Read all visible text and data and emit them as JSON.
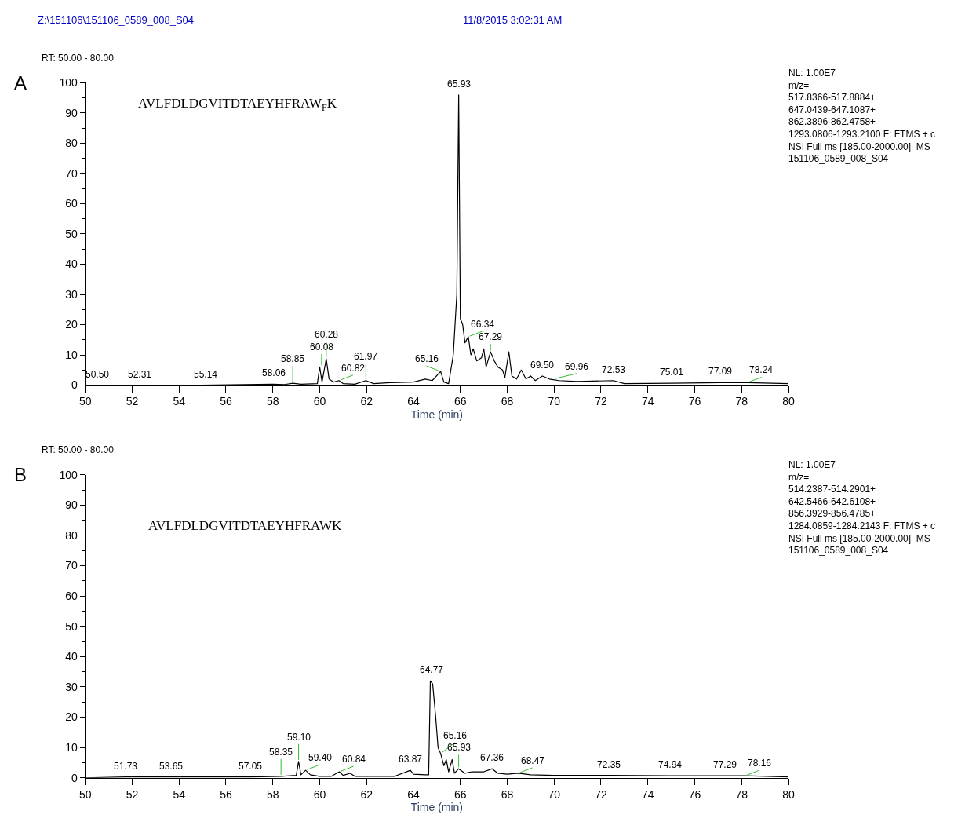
{
  "chart_data": [
    {
      "type": "line",
      "xlabel": "Time (min)",
      "xlim": [
        50,
        80
      ],
      "ylim": [
        0,
        100
      ],
      "xticks": [
        50,
        52,
        54,
        56,
        58,
        60,
        62,
        64,
        66,
        68,
        70,
        72,
        74,
        76,
        78,
        80
      ],
      "yticks": [
        0,
        10,
        20,
        30,
        40,
        50,
        60,
        70,
        80,
        90,
        100
      ],
      "legend": false,
      "x": [
        50,
        52,
        55,
        58,
        58.5,
        58.85,
        59.2,
        59.9,
        60.0,
        60.1,
        60.28,
        60.4,
        60.6,
        60.82,
        61.0,
        61.5,
        61.97,
        62.3,
        63,
        64,
        64.5,
        64.8,
        65.16,
        65.3,
        65.5,
        65.7,
        65.85,
        65.93,
        66.0,
        66.1,
        66.2,
        66.34,
        66.45,
        66.55,
        66.7,
        66.9,
        67.0,
        67.1,
        67.29,
        67.45,
        67.6,
        67.8,
        67.9,
        68.07,
        68.2,
        68.4,
        68.6,
        68.8,
        69.0,
        69.2,
        69.5,
        69.8,
        70.2,
        71,
        72.53,
        73,
        75,
        77.09,
        78.24,
        80
      ],
      "series": [
        {
          "color": "#000000",
          "values": [
            0,
            0,
            0,
            0.3,
            0.2,
            0.6,
            0.3,
            0.5,
            6,
            1,
            8.7,
            2,
            1,
            1.5,
            0.5,
            0.3,
            1.5,
            0.5,
            0.8,
            1,
            2,
            1.5,
            4.5,
            1,
            0.5,
            10,
            30,
            96,
            22,
            20,
            14,
            16,
            10,
            12,
            8,
            9,
            12,
            6,
            11,
            8,
            6,
            5,
            2.5,
            11,
            3,
            2,
            5,
            2,
            3,
            1.5,
            3,
            2,
            1.5,
            1.2,
            1.5,
            0.5,
            0.6,
            0.8,
            0.8,
            0.5
          ]
        }
      ],
      "annotations": [
        "Z:\\151106\\151106_0589_008_S04",
        "11/8/2015 3:02:31 AM",
        "RT: 50.00 - 80.00",
        "A",
        "AVLFDLDGVITDTAEYHFRAW$_{F}$K",
        "NL: 1.00E7\nm/z=\n517.8366-517.8884+\n647.0439-647.1087+\n862.3896-862.4758+\n1293.0806-1293.2100 F: FTMS + c\nNSI Full ms [185.00-2000.00]  MS\n151106_0589_008_S04",
        {
          "text": "50.50",
          "x": 50.5,
          "y": 0
        },
        {
          "text": "52.31",
          "x": 52.31,
          "y": 0
        },
        {
          "text": "55.14",
          "x": 55.14,
          "y": 0
        },
        {
          "text": "58.06",
          "x": 58.06,
          "y": 0.3
        },
        {
          "text": "58.85",
          "x": 58.85,
          "y": 0.6
        },
        {
          "text": "60.08",
          "x": 60.08,
          "y": 6
        },
        {
          "text": "60.28",
          "x": 60.28,
          "y": 8.7
        },
        {
          "text": "60.82",
          "x": 60.82,
          "y": 1.5
        },
        {
          "text": "61.97",
          "x": 61.97,
          "y": 1.5
        },
        {
          "text": "65.16",
          "x": 65.16,
          "y": 4.5
        },
        {
          "text": "65.93",
          "x": 65.93,
          "y": 96
        },
        {
          "text": "66.34",
          "x": 66.34,
          "y": 16
        },
        {
          "text": "67.29",
          "x": 67.29,
          "y": 11
        },
        {
          "text": "69.50",
          "x": 69.5,
          "y": 3
        },
        {
          "text": "69.96",
          "x": 69.96,
          "y": 2
        },
        {
          "text": "72.53",
          "x": 72.53,
          "y": 1.5
        },
        {
          "text": "75.01",
          "x": 75.01,
          "y": 0.6
        },
        {
          "text": "77.09",
          "x": 77.09,
          "y": 0.8
        },
        {
          "text": "78.24",
          "x": 78.24,
          "y": 0.8
        }
      ]
    },
    {
      "type": "line",
      "xlabel": "Time (min)",
      "xlim": [
        50,
        80
      ],
      "ylim": [
        0,
        100
      ],
      "xticks": [
        50,
        52,
        54,
        56,
        58,
        60,
        62,
        64,
        66,
        68,
        70,
        72,
        74,
        76,
        78,
        80
      ],
      "yticks": [
        0,
        10,
        20,
        30,
        40,
        50,
        60,
        70,
        80,
        90,
        100
      ],
      "legend": false,
      "x": [
        50,
        51.73,
        53.65,
        57.05,
        58.35,
        59.0,
        59.1,
        59.2,
        59.4,
        59.6,
        60,
        60.5,
        60.84,
        61,
        61.3,
        61.5,
        62.5,
        63.2,
        63.87,
        64.0,
        64.5,
        64.65,
        64.72,
        64.82,
        64.95,
        65.05,
        65.16,
        65.3,
        65.4,
        65.5,
        65.65,
        65.75,
        65.93,
        66.2,
        66.5,
        67,
        67.36,
        67.6,
        68,
        68.47,
        69,
        70,
        72.35,
        74.94,
        77.29,
        78.16,
        80
      ],
      "series": [
        {
          "color": "#000000",
          "values": [
            0,
            0.3,
            0.3,
            0.3,
            0.5,
            0.8,
            5.4,
            1,
            2.5,
            1,
            0.5,
            0.5,
            2,
            0.8,
            1.5,
            0.5,
            0.5,
            0.5,
            2.5,
            1.2,
            1,
            1,
            32,
            31,
            20,
            10,
            8,
            4,
            6,
            2,
            6,
            1.5,
            3,
            1.5,
            2,
            2,
            3,
            1.5,
            1.2,
            1.5,
            1,
            0.8,
            0.8,
            0.7,
            0.7,
            0.7,
            0.3
          ]
        }
      ],
      "annotations": [
        "RT: 50.00 - 80.00",
        "B",
        "AVLFDLDGVITDTAEYHFRAWK",
        "NL: 1.00E7\nm/z=\n514.2387-514.2901+\n642.5466-642.6108+\n856.3929-856.4785+\n1284.0859-1284.2143 F: FTMS + c\nNSI Full ms [185.00-2000.00]  MS\n151106_0589_008_S04",
        {
          "text": "51.73",
          "x": 51.73,
          "y": 0.3
        },
        {
          "text": "53.65",
          "x": 53.65,
          "y": 0.3
        },
        {
          "text": "57.05",
          "x": 57.05,
          "y": 0.3
        },
        {
          "text": "58.35",
          "x": 58.35,
          "y": 0.5
        },
        {
          "text": "59.10",
          "x": 59.1,
          "y": 5.4
        },
        {
          "text": "59.40",
          "x": 59.4,
          "y": 2.5
        },
        {
          "text": "60.84",
          "x": 60.84,
          "y": 2
        },
        {
          "text": "63.87",
          "x": 63.87,
          "y": 2.5
        },
        {
          "text": "64.77",
          "x": 64.77,
          "y": 32
        },
        {
          "text": "65.16",
          "x": 65.16,
          "y": 8
        },
        {
          "text": "65.93",
          "x": 65.93,
          "y": 3
        },
        {
          "text": "67.36",
          "x": 67.36,
          "y": 3
        },
        {
          "text": "68.47",
          "x": 68.47,
          "y": 1.5
        },
        {
          "text": "72.35",
          "x": 72.35,
          "y": 0.8
        },
        {
          "text": "74.94",
          "x": 74.94,
          "y": 0.7
        },
        {
          "text": "77.29",
          "x": 77.29,
          "y": 0.7
        },
        {
          "text": "78.16",
          "x": 78.16,
          "y": 0.7
        }
      ]
    }
  ]
}
